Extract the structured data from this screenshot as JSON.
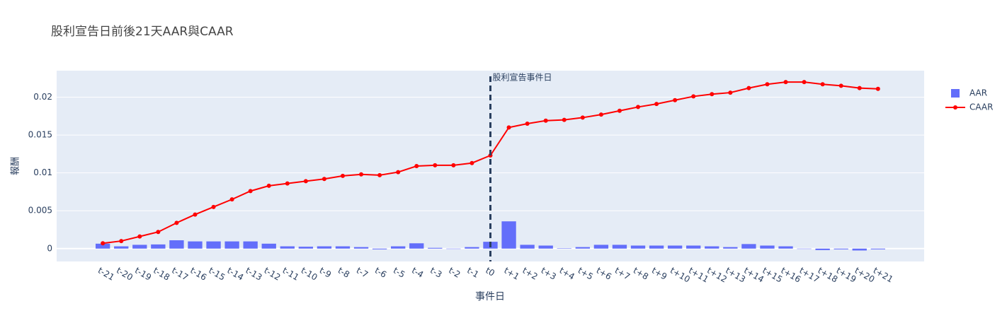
{
  "chart_data": {
    "type": "combo",
    "title": "股利宣告日前後21天AAR與CAAR",
    "x_label": "事件日",
    "y_label": "報酬",
    "categories": [
      "t-21",
      "t-20",
      "t-19",
      "t-18",
      "t-17",
      "t-16",
      "t-15",
      "t-14",
      "t-13",
      "t-12",
      "t-11",
      "t-10",
      "t-9",
      "t-8",
      "t-7",
      "t-6",
      "t-5",
      "t-4",
      "t-3",
      "t-2",
      "t-1",
      "t0",
      "t+1",
      "t+2",
      "t+3",
      "t+4",
      "t+5",
      "t+6",
      "t+7",
      "t+8",
      "t+9",
      "t+10",
      "t+11",
      "t+12",
      "t+13",
      "t+14",
      "t+15",
      "t+16",
      "t+17",
      "t+18",
      "t+19",
      "t+20",
      "t+21"
    ],
    "series": [
      {
        "name": "AAR",
        "type": "bar",
        "color": "#636efa",
        "values": [
          0.00065,
          0.0003,
          0.0005,
          0.00055,
          0.0011,
          0.00095,
          0.00095,
          0.00095,
          0.00095,
          0.00065,
          0.0003,
          0.00025,
          0.0003,
          0.0003,
          0.0002,
          -0.0001,
          0.0003,
          0.0007,
          0.0001,
          0.0,
          0.0002,
          0.0009,
          0.0036,
          0.0005,
          0.0004,
          5e-05,
          0.0002,
          0.0005,
          0.0005,
          0.0004,
          0.0004,
          0.0004,
          0.0004,
          0.0003,
          0.0002,
          0.0006,
          0.0004,
          0.0003,
          0.0,
          -0.0002,
          -0.0001,
          -0.00025,
          -0.0001
        ]
      },
      {
        "name": "CAAR",
        "type": "line",
        "color": "#ff0000",
        "values": [
          0.0007,
          0.001,
          0.0016,
          0.0022,
          0.0034,
          0.0045,
          0.0055,
          0.0065,
          0.0076,
          0.0083,
          0.0086,
          0.0089,
          0.0092,
          0.0096,
          0.0098,
          0.0097,
          0.0101,
          0.0109,
          0.011,
          0.011,
          0.0113,
          0.0123,
          0.016,
          0.0165,
          0.0169,
          0.017,
          0.0173,
          0.0177,
          0.0182,
          0.0187,
          0.0191,
          0.0196,
          0.0201,
          0.0204,
          0.0206,
          0.0212,
          0.0217,
          0.022,
          0.022,
          0.0217,
          0.0215,
          0.0212,
          0.0211
        ]
      }
    ],
    "annotation": {
      "text": "股利宣告事件日",
      "x": "t0"
    },
    "ylim": [
      -0.0017,
      0.0235
    ],
    "yticks": [
      0,
      0.005,
      0.01,
      0.015,
      0.02
    ],
    "grid": true,
    "legend": "right"
  }
}
